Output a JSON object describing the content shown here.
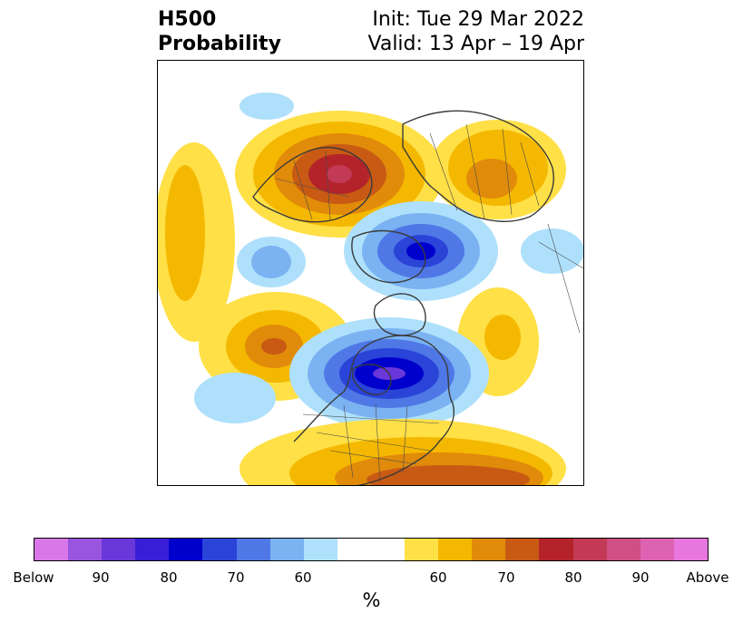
{
  "header": {
    "title_line1": "H500",
    "title_line2": "Probability",
    "init_label": "Init: Tue 29 Mar 2022",
    "valid_label": "Valid: 13 Apr – 19 Apr"
  },
  "colorbar": {
    "unit_label": "%",
    "colors": [
      "#d977e8",
      "#9a55df",
      "#6a37d9",
      "#3a1dd6",
      "#0000cc",
      "#2a44d8",
      "#4f78e6",
      "#7ab2f2",
      "#aee0fb",
      "#ffffff",
      "#ffffff",
      "#ffe046",
      "#f5b800",
      "#e18b0a",
      "#c85a14",
      "#b4232a",
      "#c23a55",
      "#cf4f86",
      "#dd62b1",
      "#e776de"
    ],
    "tick_labels": [
      "Below",
      "90",
      "80",
      "70",
      "60",
      "",
      "60",
      "70",
      "80",
      "90",
      "Above"
    ]
  },
  "map": {
    "projection": "north-polar-stereographic",
    "anomaly_colors": {
      "above_60": "#ffe046",
      "above_65": "#f5b800",
      "above_70": "#e18b0a",
      "above_75": "#c85a14",
      "above_80": "#b4232a",
      "above_85": "#c23a55",
      "below_60": "#aee0fb",
      "below_65": "#7ab2f2",
      "below_70": "#4f78e6",
      "below_75": "#2a44d8",
      "below_80": "#0000cc",
      "below_85": "#3a1dd6",
      "below_90": "#6a37d9"
    }
  }
}
